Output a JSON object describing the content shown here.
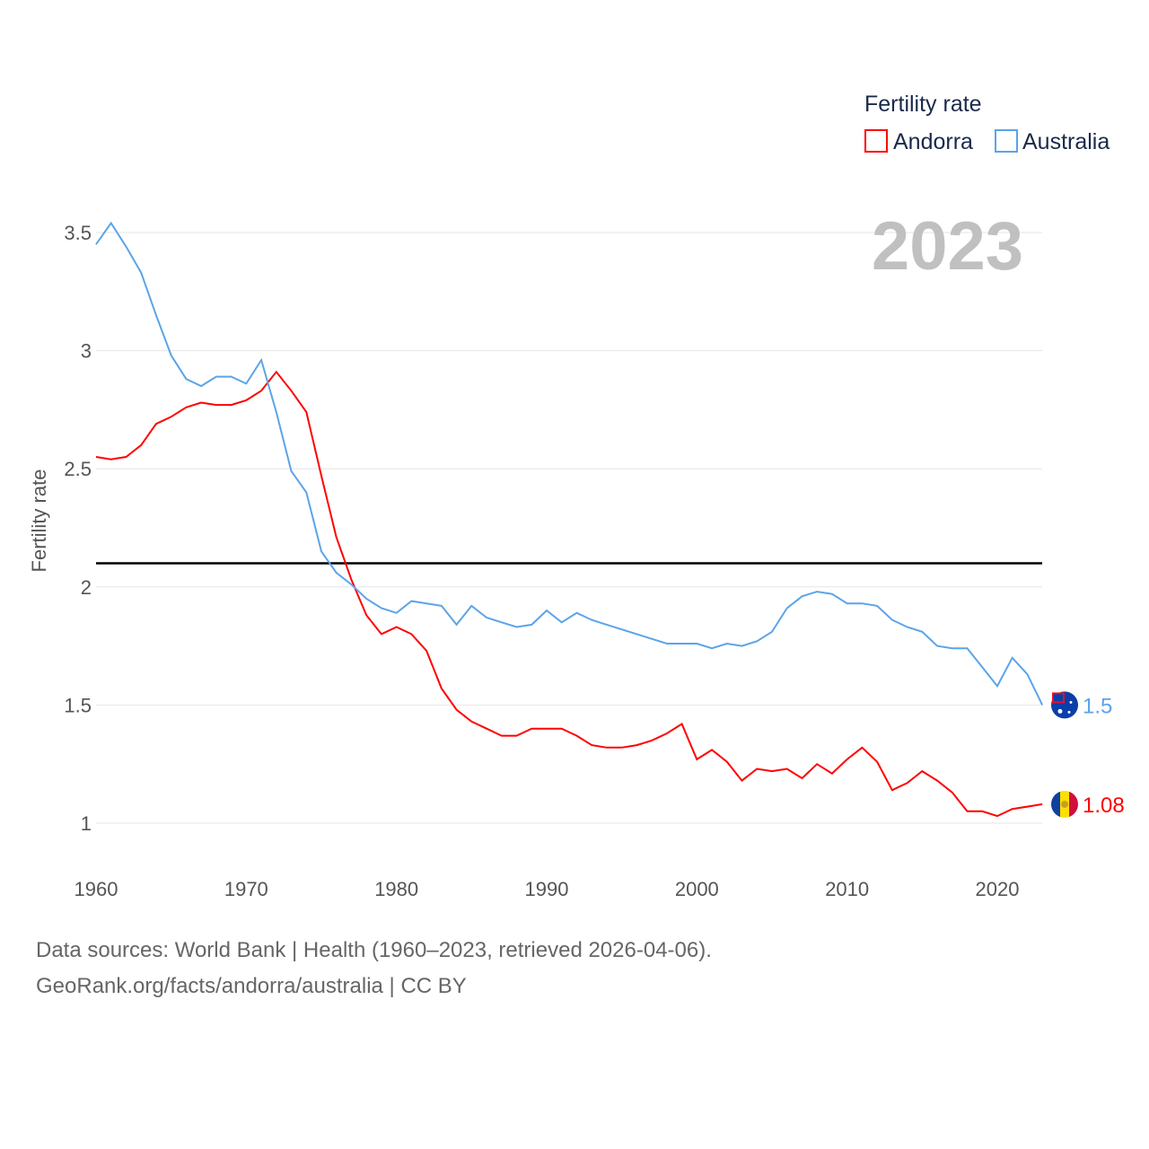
{
  "chart_data": {
    "type": "line",
    "title": "Fertility rate",
    "ylabel": "Fertility rate",
    "xlabel": "",
    "xlim": [
      1960,
      2023
    ],
    "ylim": [
      0.85,
      3.7
    ],
    "grid": true,
    "x_ticks": [
      1960,
      1970,
      1980,
      1990,
      2000,
      2010,
      2020
    ],
    "y_ticks": [
      1,
      1.5,
      2,
      2.5,
      3,
      3.5
    ],
    "y_tick_labels": [
      "1",
      "1.5",
      "2",
      "2.5",
      "3",
      "3.5"
    ],
    "year_label": "2023",
    "reference_line": 2.1,
    "legend": {
      "title": "Fertility rate",
      "position": "top-right"
    },
    "x": [
      1960,
      1961,
      1962,
      1963,
      1964,
      1965,
      1966,
      1967,
      1968,
      1969,
      1970,
      1971,
      1972,
      1973,
      1974,
      1975,
      1976,
      1977,
      1978,
      1979,
      1980,
      1981,
      1982,
      1983,
      1984,
      1985,
      1986,
      1987,
      1988,
      1989,
      1990,
      1991,
      1992,
      1993,
      1994,
      1995,
      1996,
      1997,
      1998,
      1999,
      2000,
      2001,
      2002,
      2003,
      2004,
      2005,
      2006,
      2007,
      2008,
      2009,
      2010,
      2011,
      2012,
      2013,
      2014,
      2015,
      2016,
      2017,
      2018,
      2019,
      2020,
      2021,
      2022,
      2023
    ],
    "series": [
      {
        "name": "Andorra",
        "color": "#ff0000",
        "end_label": "1.08",
        "values": [
          2.55,
          2.54,
          2.55,
          2.6,
          2.69,
          2.72,
          2.76,
          2.78,
          2.77,
          2.77,
          2.79,
          2.83,
          2.91,
          2.83,
          2.74,
          2.47,
          2.21,
          2.03,
          1.88,
          1.8,
          1.83,
          1.8,
          1.73,
          1.57,
          1.48,
          1.43,
          1.4,
          1.37,
          1.37,
          1.4,
          1.4,
          1.4,
          1.37,
          1.33,
          1.32,
          1.32,
          1.33,
          1.35,
          1.38,
          1.42,
          1.27,
          1.31,
          1.26,
          1.18,
          1.23,
          1.22,
          1.23,
          1.19,
          1.25,
          1.21,
          1.27,
          1.32,
          1.26,
          1.14,
          1.17,
          1.22,
          1.18,
          1.13,
          1.05,
          1.05,
          1.03,
          1.06,
          1.07,
          1.08
        ]
      },
      {
        "name": "Australia",
        "color": "#5ba4e8",
        "end_label": "1.5",
        "values": [
          3.45,
          3.54,
          3.44,
          3.33,
          3.15,
          2.98,
          2.88,
          2.85,
          2.89,
          2.89,
          2.86,
          2.96,
          2.74,
          2.49,
          2.4,
          2.15,
          2.06,
          2.01,
          1.95,
          1.91,
          1.89,
          1.94,
          1.93,
          1.92,
          1.84,
          1.92,
          1.87,
          1.85,
          1.83,
          1.84,
          1.9,
          1.85,
          1.89,
          1.86,
          1.84,
          1.82,
          1.8,
          1.78,
          1.76,
          1.76,
          1.76,
          1.74,
          1.76,
          1.75,
          1.77,
          1.81,
          1.91,
          1.96,
          1.98,
          1.97,
          1.93,
          1.93,
          1.92,
          1.86,
          1.83,
          1.81,
          1.75,
          1.74,
          1.74,
          1.66,
          1.58,
          1.7,
          1.63,
          1.5
        ]
      }
    ]
  },
  "footer": {
    "line1": "Data sources: World Bank | Health (1960–2023, retrieved 2026-04-06).",
    "line2": "GeoRank.org/facts/andorra/australia | CC BY"
  }
}
